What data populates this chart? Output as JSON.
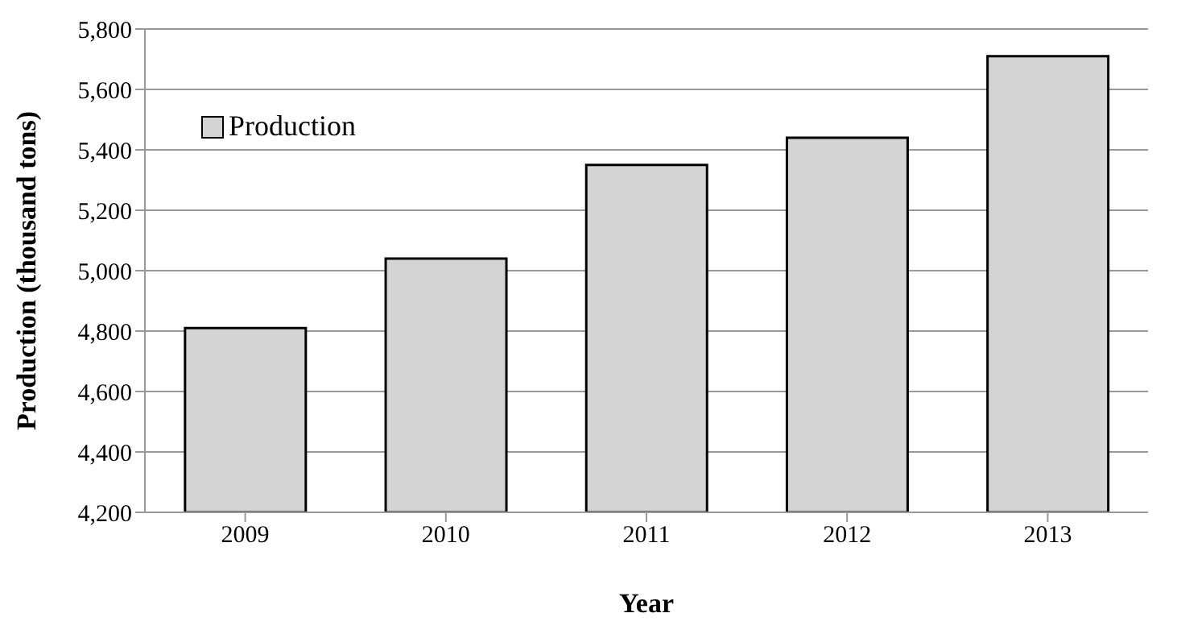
{
  "chart_data": {
    "type": "bar",
    "xlabel": "Year",
    "ylabel": "Production (thousand tons)",
    "categories": [
      "2009",
      "2010",
      "2011",
      "2012",
      "2013"
    ],
    "series": [
      {
        "name": "Production",
        "color": "#d4d4d4",
        "values": [
          4810,
          5040,
          5350,
          5440,
          5710
        ]
      }
    ],
    "ylim": [
      4200,
      5800
    ],
    "yticks": [
      {
        "value": 4200,
        "label": "4,200"
      },
      {
        "value": 4400,
        "label": "4,400"
      },
      {
        "value": 4600,
        "label": "4,600"
      },
      {
        "value": 4800,
        "label": "4,800"
      },
      {
        "value": 5000,
        "label": "5,000"
      },
      {
        "value": 5200,
        "label": "5,200"
      },
      {
        "value": 5400,
        "label": "5,400"
      },
      {
        "value": 5600,
        "label": "5,600"
      },
      {
        "value": 5800,
        "label": "5,800"
      }
    ],
    "grid": "y",
    "legend": "top left"
  }
}
